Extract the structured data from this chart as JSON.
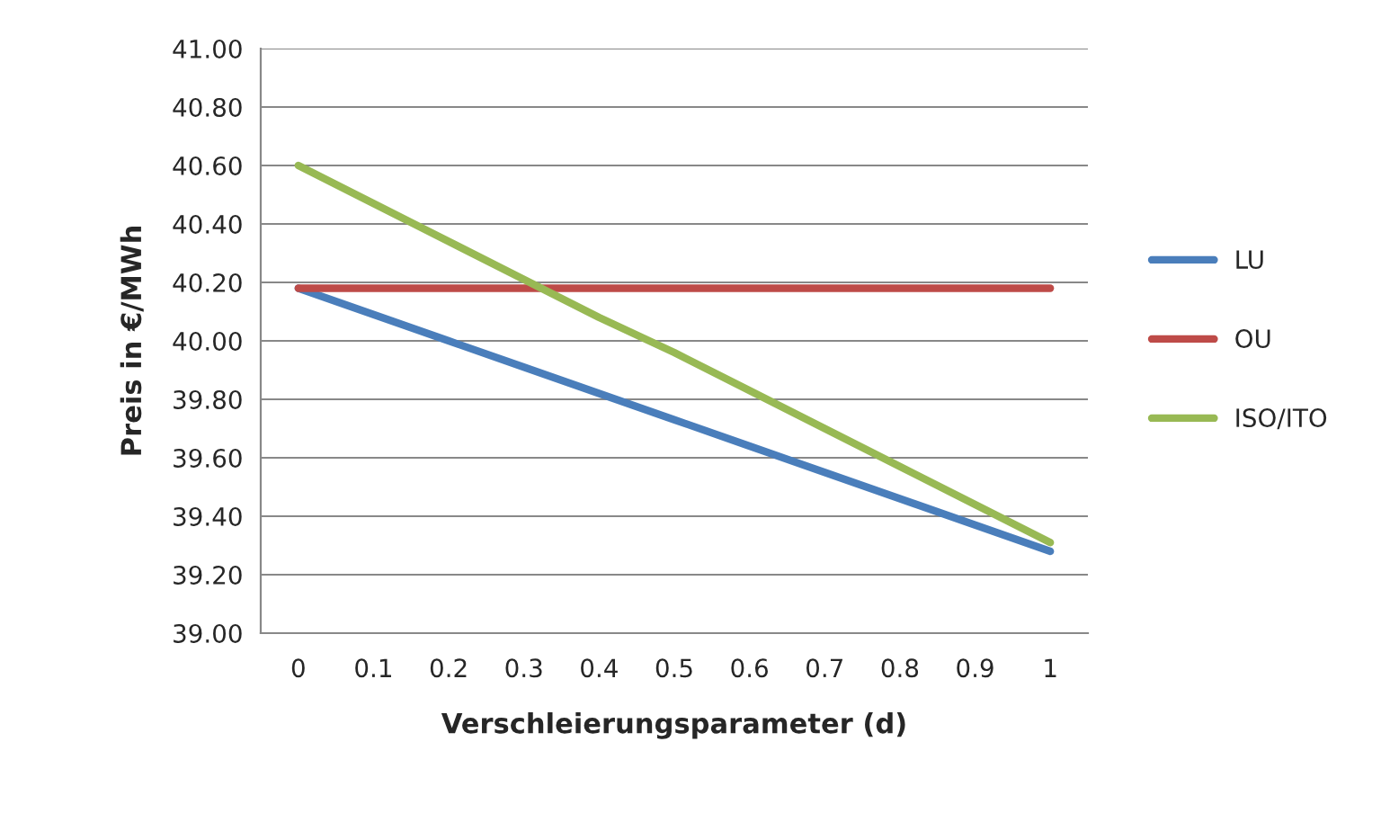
{
  "chart_data": {
    "type": "line",
    "xlabel": "Verschleierungsparameter (d)",
    "ylabel": "Preis in €/MWh",
    "categories": [
      "0",
      "0.1",
      "0.2",
      "0.3",
      "0.4",
      "0.5",
      "0.6",
      "0.7",
      "0.8",
      "0.9",
      "1"
    ],
    "series": [
      {
        "name": "LU",
        "color": "#4a7ebb",
        "values": [
          40.18,
          40.09,
          40.0,
          39.91,
          39.82,
          39.73,
          39.64,
          39.55,
          39.46,
          39.37,
          39.28
        ]
      },
      {
        "name": "OU",
        "color": "#be4b48",
        "values": [
          40.18,
          40.18,
          40.18,
          40.18,
          40.18,
          40.18,
          40.18,
          40.18,
          40.18,
          40.18,
          40.18
        ]
      },
      {
        "name": "ISO/ITO",
        "color": "#98b954",
        "values": [
          40.6,
          40.47,
          40.34,
          40.21,
          40.08,
          39.96,
          39.83,
          39.7,
          39.57,
          39.44,
          39.31
        ]
      }
    ],
    "ylim": [
      39.0,
      41.0
    ],
    "yticks": [
      {
        "value": 39.0,
        "label": "39.00"
      },
      {
        "value": 39.2,
        "label": "39.20"
      },
      {
        "value": 39.4,
        "label": "39.40"
      },
      {
        "value": 39.6,
        "label": "39.60"
      },
      {
        "value": 39.8,
        "label": "39.80"
      },
      {
        "value": 40.0,
        "label": "40.00"
      },
      {
        "value": 40.2,
        "label": "40.20"
      },
      {
        "value": 40.4,
        "label": "40.40"
      },
      {
        "value": 40.6,
        "label": "40.60"
      },
      {
        "value": 40.8,
        "label": "40.80"
      },
      {
        "value": 41.0,
        "label": "41.00"
      }
    ],
    "grid": "y",
    "legend": "right",
    "marker": "none",
    "line_style": "solid"
  }
}
